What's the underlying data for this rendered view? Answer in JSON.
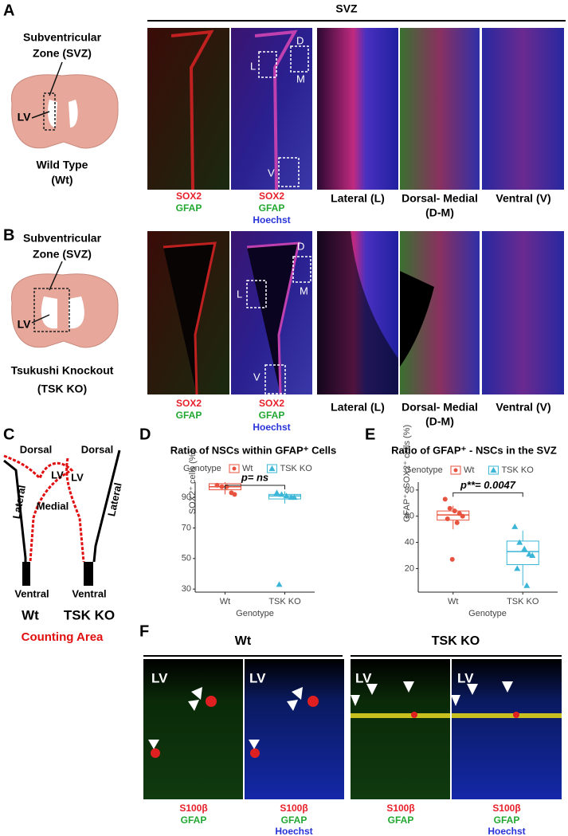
{
  "panel_A": {
    "label": "A",
    "header": "SVZ",
    "brain_line_1": "Subventricular",
    "brain_line_2": "Zone (SVZ)",
    "brain_lv": "LV",
    "genotype": "Wild Type",
    "genotype_abbr": "(Wt)",
    "insets": [
      "D",
      "L",
      "M",
      "V"
    ],
    "stains_1": [
      "SOX2",
      "GFAP"
    ],
    "stains_2": [
      "SOX2",
      "GFAP",
      "Hoechst"
    ],
    "regions": [
      "Lateral (L)",
      "Dorsal- Medial",
      "(D-M)",
      "Ventral (V)"
    ]
  },
  "panel_B": {
    "label": "B",
    "brain_line_1": "Subventricular",
    "brain_line_2": "Zone (SVZ)",
    "brain_lv": "LV",
    "genotype": "Tsukushi Knockout",
    "genotype_abbr": "(TSK KO)",
    "insets": [
      "D",
      "L",
      "M",
      "V"
    ],
    "stains_1": [
      "SOX2",
      "GFAP"
    ],
    "stains_2": [
      "SOX2",
      "GFAP",
      "Hoechst"
    ],
    "regions": [
      "Lateral (L)",
      "Dorsal- Medial",
      "(D-M)",
      "Ventral (V)"
    ]
  },
  "panel_C": {
    "label": "C",
    "dorsal_1": "Dorsal",
    "lv_1": "LV",
    "lateral_1": "Lateral",
    "medial_1": "Medial",
    "ventral_1": "Ventral",
    "dorsal_2": "Dorsal",
    "lv_2": "LV",
    "lateral_2": "Lateral",
    "ventral_2": "Ventral",
    "genotype_1": "Wt",
    "genotype_2": "TSK KO",
    "caption": "Counting Area"
  },
  "panel_D": {
    "label": "D",
    "chart": {
      "type": "box",
      "title": "Ratio of NSCs within GFAP⁺ Cells",
      "legend_title": "Genotype",
      "categories": [
        "Wt",
        "TSK KO"
      ],
      "series": [
        {
          "name": "Wt",
          "color": "#e8533f",
          "points": [
            98,
            97,
            97,
            93,
            92
          ],
          "box": {
            "min": 92,
            "q1": 95,
            "median": 97,
            "q3": 99,
            "max": 100
          }
        },
        {
          "name": "TSK KO",
          "color": "#3bb6d6",
          "points": [
            93,
            92,
            91,
            90,
            90,
            33
          ],
          "box": {
            "min": 86,
            "q1": 89,
            "median": 91,
            "q3": 92,
            "max": 94
          }
        }
      ],
      "ylim": [
        28,
        100
      ],
      "yticks": [
        30,
        50,
        70,
        90
      ],
      "y_label": "SOX2⁺ cells (%)",
      "x_label": "Genotype",
      "annotation": "p= ns"
    }
  },
  "panel_E": {
    "label": "E",
    "chart": {
      "type": "box",
      "title": "Ratio of GFAP⁺ - NSCs  in the SVZ",
      "legend_title": "Genotype",
      "categories": [
        "Wt",
        "TSK KO"
      ],
      "series": [
        {
          "name": "Wt",
          "color": "#e8533f",
          "points": [
            73,
            66,
            64,
            62,
            60,
            58,
            55,
            27
          ],
          "box": {
            "min": 50,
            "q1": 57,
            "median": 61,
            "q3": 64,
            "max": 68
          }
        },
        {
          "name": "TSK KO",
          "color": "#3bb6d6",
          "points": [
            52,
            40,
            35,
            31,
            30,
            20,
            7
          ],
          "box": {
            "min": 7,
            "q1": 23,
            "median": 33,
            "q3": 41,
            "max": 49
          }
        }
      ],
      "ylim": [
        2,
        86
      ],
      "yticks": [
        20,
        40,
        60,
        80
      ],
      "y_label": "GFAP⁺- SOX2⁺ cells (%)",
      "x_label": "Genotype",
      "annotation": "p**= 0.0047"
    }
  },
  "panel_F": {
    "label": "F",
    "group_1": "Wt",
    "group_2": "TSK KO",
    "lv": [
      "LV",
      "LV",
      "LV",
      "LV"
    ],
    "stains_1": [
      "S100β",
      "GFAP"
    ],
    "stains_2": [
      "S100β",
      "GFAP",
      "Hoechst"
    ],
    "stains_3": [
      "S100β",
      "GFAP"
    ],
    "stains_4": [
      "S100β",
      "GFAP",
      "Hoechst"
    ]
  }
}
